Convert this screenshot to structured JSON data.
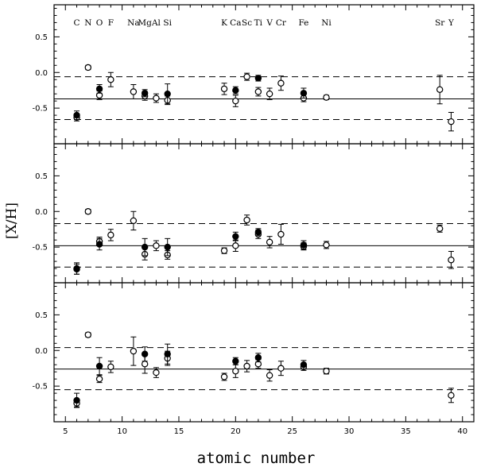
{
  "chart_data": {
    "type": "scatter",
    "xlabel": "atomic number",
    "ylabel": "[X/H]",
    "xlim": [
      4,
      41
    ],
    "ylim": [
      -1.0,
      0.95
    ],
    "xticks": [
      5,
      10,
      15,
      20,
      25,
      30,
      35,
      40
    ],
    "yticks": [
      -0.5,
      0,
      0.5
    ],
    "ytick_labels": [
      "-0.5",
      "0.0",
      "0.5"
    ],
    "element_labels": [
      {
        "text": "C",
        "x": 6
      },
      {
        "text": "N",
        "x": 7
      },
      {
        "text": "O",
        "x": 8
      },
      {
        "text": "F",
        "x": 9
      },
      {
        "text": "Na",
        "x": 11
      },
      {
        "text": "Mg",
        "x": 12
      },
      {
        "text": "Al",
        "x": 13
      },
      {
        "text": "Si",
        "x": 14
      },
      {
        "text": "K",
        "x": 19
      },
      {
        "text": "Ca",
        "x": 20
      },
      {
        "text": "Sc",
        "x": 21
      },
      {
        "text": "Ti",
        "x": 22
      },
      {
        "text": "V",
        "x": 23
      },
      {
        "text": "Cr",
        "x": 24
      },
      {
        "text": "Fe",
        "x": 26
      },
      {
        "text": "Ni",
        "x": 28
      },
      {
        "text": "Sr",
        "x": 38
      },
      {
        "text": "Y",
        "x": 39
      }
    ],
    "panels": [
      {
        "mean": -0.37,
        "band": [
          -0.06,
          -0.66
        ],
        "open": [
          {
            "x": 6,
            "y": -0.63,
            "err": 0.05
          },
          {
            "x": 7,
            "y": 0.07,
            "err": 0.03
          },
          {
            "x": 8,
            "y": -0.32,
            "err": 0.06
          },
          {
            "x": 9,
            "y": -0.1,
            "err": 0.1
          },
          {
            "x": 11,
            "y": -0.27,
            "err": 0.1
          },
          {
            "x": 12,
            "y": -0.33,
            "err": 0.06
          },
          {
            "x": 13,
            "y": -0.36,
            "err": 0.06
          },
          {
            "x": 14,
            "y": -0.39,
            "err": 0.06
          },
          {
            "x": 19,
            "y": -0.23,
            "err": 0.08
          },
          {
            "x": 20,
            "y": -0.4,
            "err": 0.08
          },
          {
            "x": 21,
            "y": -0.06,
            "err": 0.05
          },
          {
            "x": 22,
            "y": -0.27,
            "err": 0.06
          },
          {
            "x": 23,
            "y": -0.3,
            "err": 0.08
          },
          {
            "x": 24,
            "y": -0.15,
            "err": 0.1
          },
          {
            "x": 26,
            "y": -0.36,
            "err": 0.05
          },
          {
            "x": 28,
            "y": -0.35,
            "err": 0.03
          },
          {
            "x": 38,
            "y": -0.24,
            "err": 0.2
          },
          {
            "x": 39,
            "y": -0.69,
            "err": 0.13
          }
        ],
        "filled": [
          {
            "x": 6,
            "y": -0.6,
            "err": 0.06
          },
          {
            "x": 8,
            "y": -0.23,
            "err": 0.06
          },
          {
            "x": 12,
            "y": -0.29,
            "err": 0.05
          },
          {
            "x": 14,
            "y": -0.3,
            "err": 0.14
          },
          {
            "x": 20,
            "y": -0.25,
            "err": 0.05
          },
          {
            "x": 22,
            "y": -0.08,
            "err": 0.04
          },
          {
            "x": 26,
            "y": -0.29,
            "err": 0.07
          }
        ]
      },
      {
        "mean": -0.48,
        "band": [
          -0.17,
          -0.78
        ],
        "open": [
          {
            "x": 6,
            "y": -0.81,
            "err": 0.07
          },
          {
            "x": 7,
            "y": 0.0,
            "err": 0.03
          },
          {
            "x": 8,
            "y": -0.42,
            "err": 0.06
          },
          {
            "x": 9,
            "y": -0.33,
            "err": 0.08
          },
          {
            "x": 11,
            "y": -0.13,
            "err": 0.13
          },
          {
            "x": 12,
            "y": -0.6,
            "err": 0.08
          },
          {
            "x": 13,
            "y": -0.48,
            "err": 0.07
          },
          {
            "x": 14,
            "y": -0.61,
            "err": 0.06
          },
          {
            "x": 19,
            "y": -0.55,
            "err": 0.04
          },
          {
            "x": 20,
            "y": -0.48,
            "err": 0.08
          },
          {
            "x": 21,
            "y": -0.12,
            "err": 0.07
          },
          {
            "x": 22,
            "y": -0.32,
            "err": 0.06
          },
          {
            "x": 23,
            "y": -0.43,
            "err": 0.08
          },
          {
            "x": 24,
            "y": -0.32,
            "err": 0.14
          },
          {
            "x": 26,
            "y": -0.49,
            "err": 0.05
          },
          {
            "x": 28,
            "y": -0.47,
            "err": 0.05
          },
          {
            "x": 38,
            "y": -0.24,
            "err": 0.05
          },
          {
            "x": 39,
            "y": -0.68,
            "err": 0.12
          }
        ],
        "filled": [
          {
            "x": 6,
            "y": -0.8,
            "err": 0.08
          },
          {
            "x": 8,
            "y": -0.46,
            "err": 0.08
          },
          {
            "x": 12,
            "y": -0.5,
            "err": 0.12
          },
          {
            "x": 14,
            "y": -0.5,
            "err": 0.12
          },
          {
            "x": 20,
            "y": -0.35,
            "err": 0.06
          },
          {
            "x": 22,
            "y": -0.29,
            "err": 0.05
          },
          {
            "x": 26,
            "y": -0.47,
            "err": 0.06
          }
        ]
      },
      {
        "mean": -0.26,
        "band": [
          0.04,
          -0.55
        ],
        "open": [
          {
            "x": 6,
            "y": -0.74,
            "err": 0.05
          },
          {
            "x": 7,
            "y": 0.22,
            "err": 0.03
          },
          {
            "x": 8,
            "y": -0.4,
            "err": 0.05
          },
          {
            "x": 9,
            "y": -0.23,
            "err": 0.08
          },
          {
            "x": 11,
            "y": -0.01,
            "err": 0.2
          },
          {
            "x": 12,
            "y": -0.19,
            "err": 0.13
          },
          {
            "x": 13,
            "y": -0.31,
            "err": 0.07
          },
          {
            "x": 14,
            "y": -0.11,
            "err": 0.1
          },
          {
            "x": 19,
            "y": -0.37,
            "err": 0.05
          },
          {
            "x": 20,
            "y": -0.29,
            "err": 0.09
          },
          {
            "x": 21,
            "y": -0.22,
            "err": 0.08
          },
          {
            "x": 22,
            "y": -0.19,
            "err": 0.06
          },
          {
            "x": 23,
            "y": -0.35,
            "err": 0.08
          },
          {
            "x": 24,
            "y": -0.25,
            "err": 0.1
          },
          {
            "x": 26,
            "y": -0.23,
            "err": 0.05
          },
          {
            "x": 28,
            "y": -0.29,
            "err": 0.04
          },
          {
            "x": 39,
            "y": -0.63,
            "err": 0.1
          }
        ],
        "filled": [
          {
            "x": 6,
            "y": -0.7,
            "err": 0.1
          },
          {
            "x": 8,
            "y": -0.22,
            "err": 0.12
          },
          {
            "x": 12,
            "y": -0.05,
            "err": 0.1
          },
          {
            "x": 14,
            "y": -0.05,
            "err": 0.14
          },
          {
            "x": 20,
            "y": -0.15,
            "err": 0.05
          },
          {
            "x": 22,
            "y": -0.1,
            "err": 0.06
          },
          {
            "x": 26,
            "y": -0.2,
            "err": 0.06
          }
        ]
      }
    ]
  }
}
